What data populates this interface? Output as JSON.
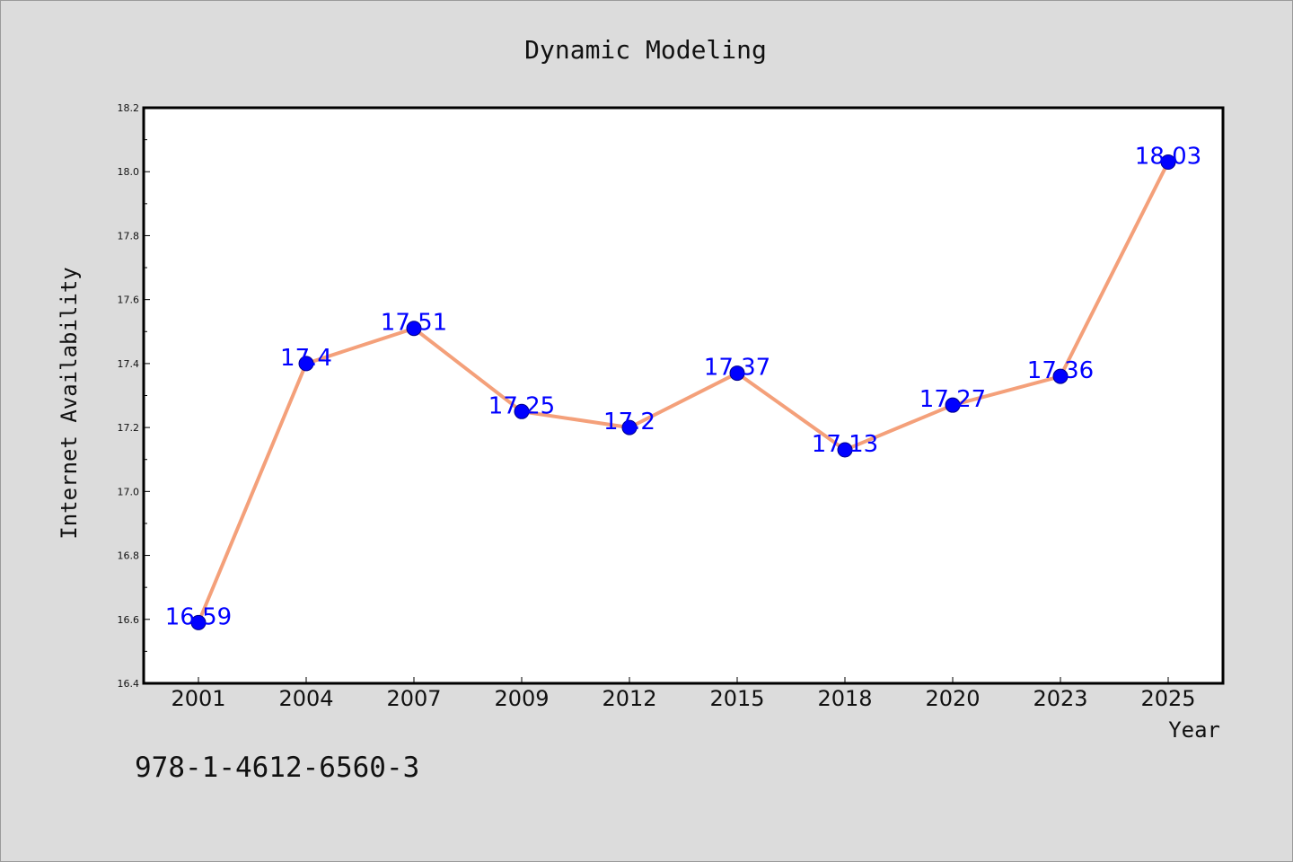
{
  "chart_data": {
    "type": "line",
    "title": "Dynamic Modeling",
    "xlabel": "Year",
    "ylabel": "Internet Availability",
    "categories": [
      "2001",
      "2004",
      "2007",
      "2009",
      "2012",
      "2015",
      "2018",
      "2020",
      "2023",
      "2025"
    ],
    "series": [
      {
        "values": [
          16.59,
          17.4,
          17.51,
          17.25,
          17.2,
          17.37,
          17.13,
          17.27,
          17.36,
          18.03
        ],
        "labels": [
          "16.59",
          "17.4",
          "17.51",
          "17.25",
          "17.2",
          "17.37",
          "17.13",
          "17.27",
          "17.36",
          "18.03"
        ],
        "line_color": "#f4a07a",
        "marker_color": "#0000ff"
      }
    ],
    "ylim": [
      16.4,
      18.2
    ],
    "yticks": [
      "16.4",
      "16.6",
      "16.8",
      "17.0",
      "17.2",
      "17.4",
      "17.6",
      "17.8",
      "18.0",
      "18.2"
    ],
    "grid": false,
    "legend": "none",
    "background_color": "#dcdcdc",
    "plot_background_color": "#ffffff"
  },
  "footer": {
    "isbn": "978-1-4612-6560-3"
  }
}
